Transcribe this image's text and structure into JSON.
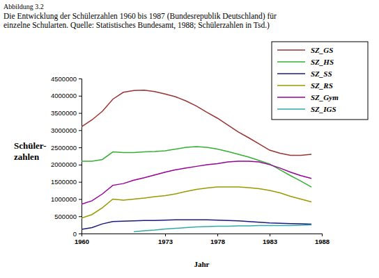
{
  "chart_data": {
    "type": "line",
    "title": "Abbildung 3.2",
    "subtitle": [
      "Die Entwicklung der Schülerzahlen 1960 bis 1987 (Bundesrepublik Deutschland) für",
      "einzelne Schularten. Quelle: Statistisches Bundesamt, 1988; Schülerzahlen in Tsd.)"
    ],
    "x_label": "Jahr",
    "y_label": [
      "Schüler-",
      "zahlen"
    ],
    "categories": [
      "1960",
      null,
      null,
      null,
      null,
      null,
      null,
      null,
      "1973",
      null,
      null,
      null,
      null,
      "1978",
      null,
      null,
      null,
      null,
      "1983",
      null,
      null,
      null,
      null,
      "1988"
    ],
    "series": [
      {
        "name": "SZ_GS",
        "color": "#993333",
        "values": [
          3100000,
          3300000,
          3550000,
          3900000,
          4100000,
          4150000,
          4160000,
          4120000,
          4050000,
          3970000,
          3850000,
          3700000,
          3520000,
          3350000,
          3150000,
          2950000,
          2780000,
          2600000,
          2420000,
          2330000,
          2270000,
          2270000,
          2300000,
          null
        ]
      },
      {
        "name": "SZ_HS",
        "color": "#33b033",
        "values": [
          2100000,
          2100000,
          2150000,
          2370000,
          2350000,
          2350000,
          2370000,
          2380000,
          2400000,
          2450000,
          2500000,
          2520000,
          2500000,
          2450000,
          2380000,
          2300000,
          2220000,
          2120000,
          2020000,
          1850000,
          1680000,
          1520000,
          1350000,
          null
        ]
      },
      {
        "name": "SZ_SS",
        "color": "#1a1a80",
        "values": [
          120000,
          170000,
          280000,
          350000,
          360000,
          370000,
          380000,
          380000,
          390000,
          400000,
          400000,
          400000,
          400000,
          390000,
          380000,
          370000,
          350000,
          330000,
          310000,
          300000,
          290000,
          280000,
          270000,
          null
        ]
      },
      {
        "name": "SZ_RS",
        "color": "#999900",
        "values": [
          450000,
          550000,
          750000,
          1000000,
          970000,
          1000000,
          1030000,
          1070000,
          1100000,
          1150000,
          1220000,
          1280000,
          1320000,
          1350000,
          1350000,
          1350000,
          1330000,
          1300000,
          1250000,
          1180000,
          1080000,
          1000000,
          920000,
          null
        ]
      },
      {
        "name": "SZ_Gym",
        "color": "#990099",
        "values": [
          850000,
          950000,
          1150000,
          1400000,
          1450000,
          1550000,
          1620000,
          1700000,
          1780000,
          1850000,
          1900000,
          1950000,
          2000000,
          2030000,
          2080000,
          2100000,
          2100000,
          2080000,
          2000000,
          1900000,
          1780000,
          1680000,
          1600000,
          null
        ]
      },
      {
        "name": "SZ_IGS",
        "color": "#33aaaa",
        "values": [
          null,
          null,
          null,
          null,
          null,
          50000,
          80000,
          100000,
          130000,
          150000,
          170000,
          190000,
          200000,
          210000,
          210000,
          220000,
          220000,
          230000,
          230000,
          230000,
          230000,
          240000,
          250000,
          null
        ]
      }
    ],
    "ylim": [
      0,
      4500000
    ],
    "yticks": [
      0,
      500000,
      1000000,
      1500000,
      2000000,
      2500000,
      3000000,
      3500000,
      4000000,
      4500000
    ],
    "grid": false,
    "legend": "top-right"
  }
}
